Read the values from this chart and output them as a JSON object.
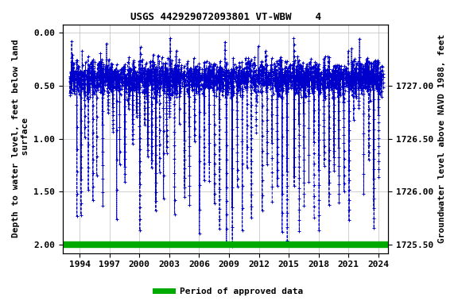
{
  "title": "USGS 442929072093801 VT-WBW    4",
  "ylabel_left": "Depth to water level, feet below land\n surface",
  "ylabel_right": "Groundwater level above NAVD 1988, feet",
  "ylim_left": [
    2.08,
    -0.08
  ],
  "ylim_right": [
    1725.42,
    1727.58
  ],
  "yticks_left": [
    0.0,
    0.5,
    1.0,
    1.5,
    2.0
  ],
  "yticks_right": [
    1725.5,
    1726.0,
    1726.5,
    1727.0
  ],
  "xticks": [
    1994,
    1997,
    2000,
    2003,
    2006,
    2009,
    2012,
    2015,
    2018,
    2021,
    2024
  ],
  "xlim": [
    1992.3,
    2025.0
  ],
  "line_color": "#0000cc",
  "marker": "+",
  "linestyle": "--",
  "approved_color": "#00aa00",
  "approved_y": 2.0,
  "legend_label": "Period of approved data",
  "background_color": "#ffffff",
  "plot_bg_color": "#ffffff",
  "grid_color": "#c8c8c8",
  "title_fontsize": 9,
  "label_fontsize": 8,
  "tick_fontsize": 8,
  "legend_fontsize": 8
}
